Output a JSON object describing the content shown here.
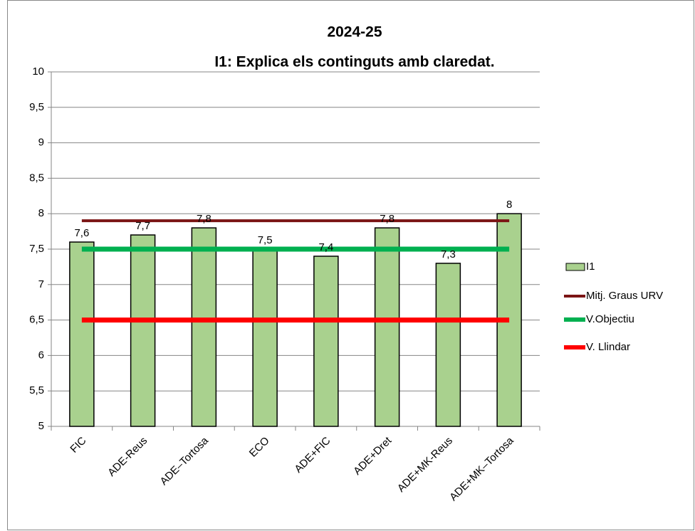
{
  "chart_data": {
    "type": "bar",
    "title": "2024-25",
    "subtitle": "I1: Explica els continguts amb claredat.",
    "categories": [
      "FIC",
      "ADE-Reus",
      "ADE–Tortosa",
      "ECO",
      "ADE+FIC",
      "ADE+Dret",
      "ADE+MK-Reus",
      "ADE+MK–Tortosa"
    ],
    "series": [
      {
        "name": "I1",
        "type": "bar",
        "color": "#a9d18e",
        "values": [
          7.6,
          7.7,
          7.8,
          7.5,
          7.4,
          7.8,
          7.3,
          8
        ],
        "value_labels": [
          "7,6",
          "7,7",
          "7,8",
          "7,5",
          "7,4",
          "7,8",
          "7,3",
          "8"
        ]
      },
      {
        "name": "Mitj. Graus URV",
        "type": "line",
        "color": "#7b1414",
        "values": [
          7.9,
          7.9,
          7.9,
          7.9,
          7.9,
          7.9,
          7.9,
          7.9
        ]
      },
      {
        "name": "V.Objectiu",
        "type": "line",
        "color": "#00b050",
        "values": [
          7.5,
          7.5,
          7.5,
          7.5,
          7.5,
          7.5,
          7.5,
          7.5
        ]
      },
      {
        "name": "V. Llindar",
        "type": "line",
        "color": "#ff0000",
        "values": [
          6.5,
          6.5,
          6.5,
          6.5,
          6.5,
          6.5,
          6.5,
          6.5
        ]
      }
    ],
    "ylim": [
      5,
      10
    ],
    "yticks": [
      5,
      {
        "value": 5.5,
        "label": "5,5"
      },
      6,
      {
        "value": 6.5,
        "label": "6,5"
      },
      7,
      {
        "value": 7.5,
        "label": "7,5"
      },
      8,
      {
        "value": 8.5,
        "label": "8,5"
      },
      9,
      {
        "value": 9.5,
        "label": "9,5"
      },
      10
    ],
    "grid": true,
    "legend": "right"
  }
}
